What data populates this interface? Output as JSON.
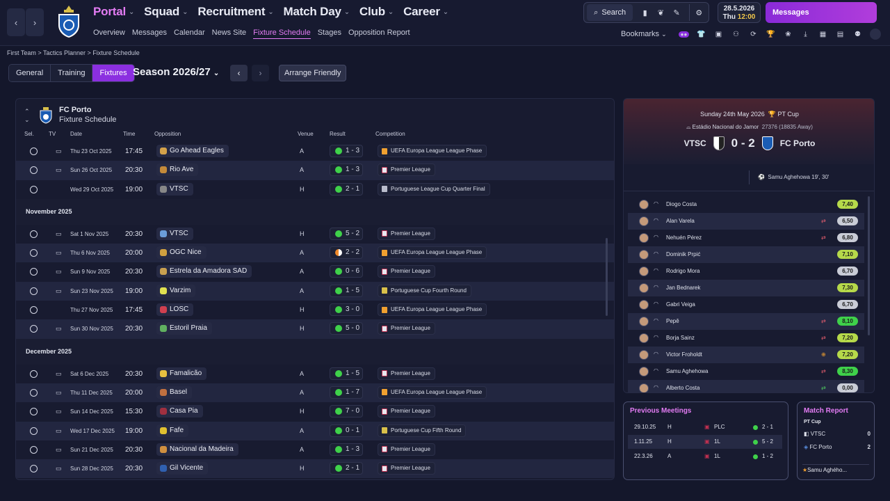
{
  "nav": {
    "main": [
      {
        "label": "Portal",
        "active": true
      },
      {
        "label": "Squad"
      },
      {
        "label": "Recruitment"
      },
      {
        "label": "Match Day"
      },
      {
        "label": "Club"
      },
      {
        "label": "Career"
      }
    ],
    "sub": [
      {
        "label": "Overview"
      },
      {
        "label": "Messages"
      },
      {
        "label": "Calendar"
      },
      {
        "label": "News Site"
      },
      {
        "label": "Fixture Schedule",
        "active": true
      },
      {
        "label": "Stages"
      },
      {
        "label": "Opposition Report"
      }
    ],
    "search_label": "Search",
    "date": "28.5.2026",
    "day": "Thu",
    "time": "12:00",
    "messages_label": "Messages",
    "bookmarks_label": "Bookmarks"
  },
  "breadcrumb": [
    "First Team",
    "Tactics Planner",
    "Fixture Schedule"
  ],
  "tabs": [
    {
      "label": "General"
    },
    {
      "label": "Training"
    },
    {
      "label": "Fixtures",
      "active": true
    }
  ],
  "season": "Season 2026/27",
  "arrange_label": "Arrange Friendly",
  "panel": {
    "title": "FC Porto",
    "subtitle": "Fixture Schedule",
    "columns": {
      "sel": "Sel.",
      "tv": "TV",
      "date": "Date",
      "time": "Time",
      "opposition": "Opposition",
      "venue": "Venue",
      "result": "Result",
      "competition": "Competition"
    }
  },
  "sections": [
    {
      "month": "",
      "rows": [
        {
          "tv": true,
          "date": "Thu 23 Oct 2025",
          "time": "17:45",
          "opp": "Go Ahead Eagles",
          "venue": "A",
          "result": "1 - 3",
          "outcome": "win",
          "comp": "UEFA Europa League League Phase",
          "ctype": "uel"
        },
        {
          "tv": true,
          "date": "Sun 26 Oct 2025",
          "time": "20:30",
          "opp": "Rio Ave",
          "venue": "A",
          "result": "1 - 3",
          "outcome": "win",
          "comp": "Premier League",
          "ctype": "pl"
        },
        {
          "tv": false,
          "date": "Wed 29 Oct 2025",
          "time": "19:00",
          "opp": "VTSC",
          "venue": "H",
          "result": "2 - 1",
          "outcome": "win",
          "comp": "Portuguese League Cup Quarter Final",
          "ctype": "plc"
        }
      ]
    },
    {
      "month": "November 2025",
      "rows": [
        {
          "tv": true,
          "date": "Sat 1 Nov 2025",
          "time": "20:30",
          "opp": "VTSC",
          "venue": "H",
          "result": "5 - 2",
          "outcome": "win",
          "comp": "Premier League",
          "ctype": "pl"
        },
        {
          "tv": true,
          "date": "Thu 6 Nov 2025",
          "time": "20:00",
          "opp": "OGC Nice",
          "venue": "A",
          "result": "2 - 2",
          "outcome": "draw",
          "comp": "UEFA Europa League League Phase",
          "ctype": "uel"
        },
        {
          "tv": true,
          "date": "Sun 9 Nov 2025",
          "time": "20:30",
          "opp": "Estrela da Amadora SAD",
          "venue": "A",
          "result": "0 - 6",
          "outcome": "win",
          "comp": "Premier League",
          "ctype": "pl"
        },
        {
          "tv": true,
          "date": "Sun 23 Nov 2025",
          "time": "19:00",
          "opp": "Varzim",
          "venue": "A",
          "result": "1 - 5",
          "outcome": "win",
          "comp": "Portuguese Cup Fourth Round",
          "ctype": "cup"
        },
        {
          "tv": false,
          "date": "Thu 27 Nov 2025",
          "time": "17:45",
          "opp": "LOSC",
          "venue": "H",
          "result": "3 - 0",
          "outcome": "win",
          "comp": "UEFA Europa League League Phase",
          "ctype": "uel"
        },
        {
          "tv": true,
          "date": "Sun 30 Nov 2025",
          "time": "20:30",
          "opp": "Estoril Praia",
          "venue": "H",
          "result": "5 - 0",
          "outcome": "win",
          "comp": "Premier League",
          "ctype": "pl"
        }
      ]
    },
    {
      "month": "December 2025",
      "rows": [
        {
          "tv": true,
          "date": "Sat 6 Dec 2025",
          "time": "20:30",
          "opp": "Famalicão",
          "venue": "A",
          "result": "1 - 5",
          "outcome": "win",
          "comp": "Premier League",
          "ctype": "pl"
        },
        {
          "tv": true,
          "date": "Thu 11 Dec 2025",
          "time": "20:00",
          "opp": "Basel",
          "venue": "A",
          "result": "1 - 7",
          "outcome": "win",
          "comp": "UEFA Europa League League Phase",
          "ctype": "uel"
        },
        {
          "tv": true,
          "date": "Sun 14 Dec 2025",
          "time": "15:30",
          "opp": "Casa Pia",
          "venue": "H",
          "result": "7 - 0",
          "outcome": "win",
          "comp": "Premier League",
          "ctype": "pl"
        },
        {
          "tv": true,
          "date": "Wed 17 Dec 2025",
          "time": "19:00",
          "opp": "Fafe",
          "venue": "A",
          "result": "0 - 1",
          "outcome": "win",
          "comp": "Portuguese Cup Fifth Round",
          "ctype": "cup"
        },
        {
          "tv": true,
          "date": "Sun 21 Dec 2025",
          "time": "20:30",
          "opp": "Nacional da Madeira",
          "venue": "A",
          "result": "1 - 3",
          "outcome": "win",
          "comp": "Premier League",
          "ctype": "pl"
        },
        {
          "tv": true,
          "date": "Sun 28 Dec 2025",
          "time": "20:30",
          "opp": "Gil Vicente",
          "venue": "H",
          "result": "2 - 1",
          "outcome": "win",
          "comp": "Premier League",
          "ctype": "pl"
        }
      ]
    }
  ],
  "match": {
    "date": "Sunday 24th May 2026",
    "competition": "PT Cup",
    "stadium": "Estádio Nacional do Jamor",
    "attendance": "27376 (18835 Away)",
    "home": "VTSC",
    "score": "0 - 2",
    "away": "FC Porto",
    "scorers": "Samu Aghehowa 19', 30'",
    "players": [
      {
        "name": "Diogo Costa",
        "rating": "7,40",
        "sub": ""
      },
      {
        "name": "Alan Varela",
        "rating": "6,50",
        "sub": "out"
      },
      {
        "name": "Nehuén Pérez",
        "rating": "6,80",
        "sub": "out"
      },
      {
        "name": "Dominik Prpić",
        "rating": "7,10",
        "sub": ""
      },
      {
        "name": "Rodrigo Mora",
        "rating": "6,70",
        "sub": ""
      },
      {
        "name": "Jan Bednarek",
        "rating": "7,30",
        "sub": ""
      },
      {
        "name": "Gabri Veiga",
        "rating": "6,70",
        "sub": ""
      },
      {
        "name": "Pepê",
        "rating": "8,10",
        "sub": "out"
      },
      {
        "name": "Borja Sainz",
        "rating": "7,20",
        "sub": "out"
      },
      {
        "name": "Victor Froholdt",
        "rating": "7,20",
        "sub": "plus"
      },
      {
        "name": "Samu Aghehowa",
        "rating": "8,30",
        "sub": "out"
      },
      {
        "name": "Alberto Costa",
        "rating": "0,00",
        "sub": "in"
      }
    ]
  },
  "previous": {
    "title": "Previous Meetings",
    "rows": [
      {
        "date": "29.10.25",
        "venue": "H",
        "comp": "PLC",
        "result": "2 - 1"
      },
      {
        "date": "1.11.25",
        "venue": "H",
        "comp": "1L",
        "result": "5 - 2"
      },
      {
        "date": "22.3.26",
        "venue": "A",
        "comp": "1L",
        "result": "1 - 2"
      }
    ]
  },
  "report": {
    "title": "Match Report",
    "competition": "PT Cup",
    "home": "VTSC",
    "home_goals": "0",
    "away": "FC Porto",
    "away_goals": "2",
    "scorer": "Samu Aghého..."
  },
  "colors": {
    "accent": "#8b2fe0",
    "pink": "#e47cf4",
    "win": "#3fd14a",
    "draw": "#f08a2a",
    "rating_good": "#b6d94a",
    "rating_mid": "#c9ccd6"
  }
}
